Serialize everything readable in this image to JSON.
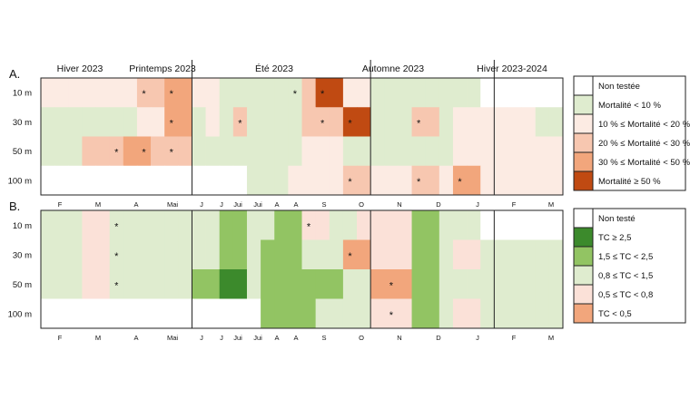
{
  "chart_data": [
    {
      "panel": "A.",
      "type": "heatmap",
      "seasons": [
        "Hiver 2023",
        "Printemps 2023",
        "Été 2023",
        "Automne 2023",
        "Hiver 2023-2024"
      ],
      "months": [
        "F",
        "M",
        "A",
        "Mai",
        "J",
        "J",
        "Jui",
        "Jui",
        "A",
        "A",
        "S",
        "O",
        "N",
        "D",
        "J",
        "F",
        "M"
      ],
      "depths": [
        "10 m",
        "30 m",
        "50 m",
        "100 m"
      ],
      "legend": [
        {
          "key": "nt",
          "label": "Non testée",
          "color": "#ffffff"
        },
        {
          "key": "m1",
          "label": "Mortalité < 10 %",
          "color": "#dfeccf"
        },
        {
          "key": "m2",
          "label": "10 % ≤ Mortalité < 20 %",
          "color": "#fcebe3"
        },
        {
          "key": "m3",
          "label": "20 % ≤ Mortalité < 30 %",
          "color": "#f7c7b0"
        },
        {
          "key": "m4",
          "label": "30 % ≤ Mortalité < 50 %",
          "color": "#f2a67c"
        },
        {
          "key": "m5",
          "label": "Mortalité ≥ 50 %",
          "color": "#c04a12"
        }
      ],
      "values": [
        [
          "m2",
          "m2",
          "m2",
          "m2",
          "m2",
          "m2",
          "m2",
          "m3",
          "m3",
          "m4",
          "m4",
          "m2",
          "m2",
          "m1",
          "m1",
          "m1",
          "m1",
          "m1",
          "m1",
          "m3",
          "m5",
          "m5",
          "m2",
          "m2",
          "m1",
          "m1",
          "m1",
          "m1",
          "m1",
          "m1",
          "m1",
          "m1",
          "nt",
          "nt",
          "nt",
          "nt",
          "nt",
          "nt"
        ],
        [
          "m1",
          "m1",
          "m1",
          "m1",
          "m1",
          "m1",
          "m1",
          "m2",
          "m2",
          "m4",
          "m4",
          "m1",
          "m2",
          "m1",
          "m3",
          "m1",
          "m1",
          "m1",
          "m1",
          "m3",
          "m3",
          "m3",
          "m5",
          "m5",
          "m1",
          "m1",
          "m1",
          "m3",
          "m3",
          "m1",
          "m2",
          "m2",
          "m2",
          "m2",
          "m2",
          "m2",
          "m1",
          "m1"
        ],
        [
          "m1",
          "m1",
          "m1",
          "m3",
          "m3",
          "m3",
          "m4",
          "m4",
          "m3",
          "m3",
          "m3",
          "m1",
          "m1",
          "m1",
          "m1",
          "m1",
          "m1",
          "m1",
          "m1",
          "m2",
          "m2",
          "m2",
          "m1",
          "m1",
          "m1",
          "m1",
          "m1",
          "m1",
          "m1",
          "m1",
          "m2",
          "m2",
          "m2",
          "m2",
          "m2",
          "m2",
          "m2",
          "m2"
        ],
        [
          "nt",
          "nt",
          "nt",
          "nt",
          "nt",
          "nt",
          "nt",
          "nt",
          "nt",
          "nt",
          "nt",
          "nt",
          "nt",
          "nt",
          "nt",
          "m1",
          "m1",
          "m1",
          "m2",
          "m2",
          "m2",
          "m2",
          "m3",
          "m3",
          "m2",
          "m2",
          "m2",
          "m3",
          "m3",
          "m2",
          "m4",
          "m4",
          "m2",
          "m2",
          "m2",
          "m2",
          "m2",
          "m2"
        ]
      ],
      "stars": [
        [
          1,
          7
        ],
        [
          1,
          9
        ],
        [
          1,
          18
        ],
        [
          1,
          20
        ],
        [
          2,
          9
        ],
        [
          2,
          14
        ],
        [
          2,
          20
        ],
        [
          2,
          22
        ],
        [
          2,
          27
        ],
        [
          3,
          5
        ],
        [
          3,
          7
        ],
        [
          3,
          9
        ],
        [
          4,
          22
        ],
        [
          4,
          27
        ],
        [
          4,
          30
        ]
      ]
    },
    {
      "panel": "B.",
      "type": "heatmap",
      "months": [
        "F",
        "M",
        "A",
        "Mai",
        "J",
        "J",
        "Jui",
        "Jui",
        "A",
        "A",
        "S",
        "O",
        "N",
        "D",
        "J",
        "F",
        "M"
      ],
      "depths": [
        "10 m",
        "30 m",
        "50 m",
        "100 m"
      ],
      "legend": [
        {
          "key": "nt",
          "label": "Non testé",
          "color": "#ffffff"
        },
        {
          "key": "t1",
          "label": "TC ≥ 2,5",
          "color": "#3c8a2c"
        },
        {
          "key": "t2",
          "label": "1,5 ≤ TC < 2,5",
          "color": "#92c463"
        },
        {
          "key": "t3",
          "label": "0,8 ≤ TC < 1,5",
          "color": "#dfeccf"
        },
        {
          "key": "t4",
          "label": "0,5 ≤ TC < 0,8",
          "color": "#fbe1d8"
        },
        {
          "key": "t5",
          "label": "TC < 0,5",
          "color": "#f2a67c"
        }
      ],
      "values": [
        [
          "t3",
          "t3",
          "t3",
          "t4",
          "t4",
          "t3",
          "t3",
          "t3",
          "t3",
          "t3",
          "t3",
          "t3",
          "t3",
          "t2",
          "t2",
          "t3",
          "t3",
          "t2",
          "t2",
          "t4",
          "t4",
          "t3",
          "t3",
          "t4",
          "t4",
          "t4",
          "t4",
          "t2",
          "t2",
          "t3",
          "t3",
          "t3",
          "nt",
          "nt",
          "nt",
          "nt",
          "nt",
          "nt"
        ],
        [
          "t3",
          "t3",
          "t3",
          "t4",
          "t4",
          "t3",
          "t3",
          "t3",
          "t3",
          "t3",
          "t3",
          "t3",
          "t3",
          "t2",
          "t2",
          "t3",
          "t2",
          "t2",
          "t2",
          "t3",
          "t3",
          "t3",
          "t5",
          "t5",
          "t4",
          "t4",
          "t4",
          "t2",
          "t2",
          "t3",
          "t4",
          "t4",
          "t3",
          "t3",
          "t3",
          "t3",
          "t3",
          "t3"
        ],
        [
          "t3",
          "t3",
          "t3",
          "t4",
          "t4",
          "t3",
          "t3",
          "t3",
          "t3",
          "t3",
          "t3",
          "t2",
          "t2",
          "t1",
          "t1",
          "t3",
          "t2",
          "t2",
          "t2",
          "t2",
          "t2",
          "t2",
          "t3",
          "t3",
          "t5",
          "t5",
          "t5",
          "t2",
          "t2",
          "t3",
          "t3",
          "t3",
          "t3",
          "t3",
          "t3",
          "t3",
          "t3",
          "t3"
        ],
        [
          "nt",
          "nt",
          "nt",
          "nt",
          "nt",
          "nt",
          "nt",
          "nt",
          "nt",
          "nt",
          "nt",
          "nt",
          "nt",
          "nt",
          "nt",
          "nt",
          "t2",
          "t2",
          "t2",
          "t2",
          "t3",
          "t3",
          "t3",
          "t3",
          "t4",
          "t4",
          "t4",
          "t2",
          "t2",
          "t3",
          "t4",
          "t4",
          "t3",
          "t3",
          "t3",
          "t3",
          "t3",
          "t3"
        ]
      ],
      "stars": [
        [
          1,
          5
        ],
        [
          1,
          19
        ],
        [
          2,
          5
        ],
        [
          2,
          22
        ],
        [
          3,
          5
        ],
        [
          3,
          25
        ],
        [
          4,
          25
        ]
      ]
    }
  ]
}
